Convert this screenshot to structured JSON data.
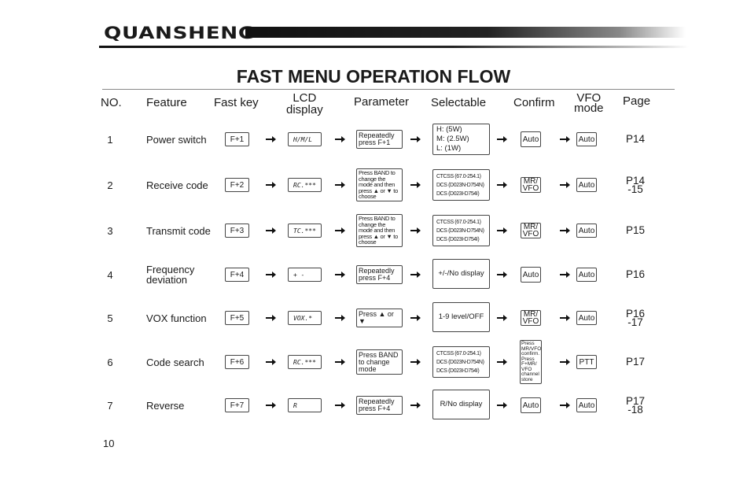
{
  "brand": {
    "logo": "QUANSHENG"
  },
  "title": "FAST MENU OPERATION FLOW",
  "headers": {
    "no": "NO.",
    "feature": "Feature",
    "fast_key": "Fast key",
    "lcd_display": "LCD\ndisplay",
    "parameter": "Parameter",
    "selectable": "Selectable",
    "confirm": "Confirm",
    "vfo_mode": "VFO\nmode",
    "page": "Page"
  },
  "rows": [
    {
      "no": "1",
      "feature": "Power switch",
      "fast_key": "F+1",
      "lcd": "H/M/L",
      "parameter": "Repeatedly\npress F+1",
      "selectable": "H: (5W)\nM: (2.5W)\nL: (1W)",
      "confirm": "Auto",
      "vfo": "Auto",
      "page": "P14"
    },
    {
      "no": "2",
      "feature": "Receive code",
      "fast_key": "F+2",
      "lcd": "RC.***",
      "parameter": "Press BAND to\nchange the\nmode and then\npress ▲ or ▼ to\nchoose",
      "selectable": "CTCSS (67.0-254.1)\nDCS (D023N-D754N)\nDCS (D023I-D754I)",
      "confirm": "MR/\nVFO",
      "vfo": "Auto",
      "page": "P14\n-15"
    },
    {
      "no": "3",
      "feature": "Transmit code",
      "fast_key": "F+3",
      "lcd": "TC.***",
      "parameter": "Press BAND to\nchange the\nmode and then\npress ▲ or ▼ to\nchoose",
      "selectable": "CTCSS (67.0-254.1)\nDCS (D023N-D754N)\nDCS (D023I-D754I)",
      "confirm": "MR/\nVFO",
      "vfo": "Auto",
      "page": "P15"
    },
    {
      "no": "4",
      "feature": "Frequency\ndeviation",
      "fast_key": "F+4",
      "lcd": "+  -",
      "parameter": "Repeatedly\npress F+4",
      "selectable": "+/-/No display",
      "confirm": "Auto",
      "vfo": "Auto",
      "page": "P16"
    },
    {
      "no": "5",
      "feature": "VOX function",
      "fast_key": "F+5",
      "lcd": "VOX.*",
      "parameter": "Press ▲ or ▼",
      "selectable": "1-9 level/OFF",
      "confirm": "MR/\nVFO",
      "vfo": "Auto",
      "page": "P16\n-17"
    },
    {
      "no": "6",
      "feature": "Code search",
      "fast_key": "F+6",
      "lcd": "RC.***",
      "parameter": "Press BAND\nto change\nmode",
      "selectable": "CTCSS (67.0-254.1)\nDCS (D023N-D754N)\nDCS (D023I-D754I)",
      "confirm": "Press\nMR/VFO\nconfirm.\nPress\nF+MR/\nVFO\nchannel\nstore",
      "vfo": "PTT",
      "page": "P17"
    },
    {
      "no": "7",
      "feature": "Reverse",
      "fast_key": "F+7",
      "lcd": "R",
      "parameter": "Repeatedly\npress F+4",
      "selectable": "R/No display",
      "confirm": "Auto",
      "vfo": "Auto",
      "page": "P17\n-18"
    }
  ],
  "page_number": "10"
}
